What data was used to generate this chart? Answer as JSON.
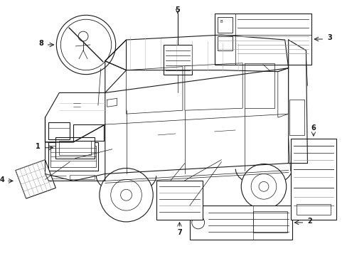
{
  "bg_color": "#ffffff",
  "line_color": "#1a1a1a",
  "gray_color": "#777777",
  "mid_gray": "#999999",
  "light_gray": "#bbbbbb",
  "fig_w": 4.89,
  "fig_h": 3.6,
  "dpi": 100
}
